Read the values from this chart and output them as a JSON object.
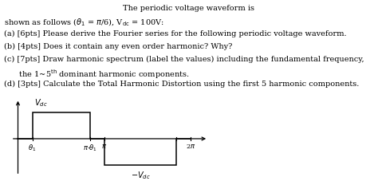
{
  "title": "The periodic voltage waveform is",
  "line2": "shown as follows (θ₁ = π/6), Vᵒᶜ = 100V:",
  "item_a": "(a) [6pts] Please derive the Fourier series for the following periodic voltage waveform.",
  "item_b": "(b) [4pts] Does it contain any even order harmonic? Why?",
  "item_c1": "(c) [7pts] Draw harmonic spectrum (label the values) including the fundamental frequency,",
  "item_c2": "      the 1~5",
  "item_c2b": "th",
  "item_c2c": " dominant harmonic components.",
  "item_d": "(d) [3pts] Calculate the Total Harmonic Distortion using the first 5 harmonic components.",
  "font_size": 7.0,
  "waveform_color": "black",
  "bg_color": "white",
  "th1_over_2pi": 0.08333,
  "pi_minus_th1_over_2pi": 0.41667,
  "pi_over_2pi": 0.5,
  "twopi_minus_th1_over_2pi": 0.91667
}
